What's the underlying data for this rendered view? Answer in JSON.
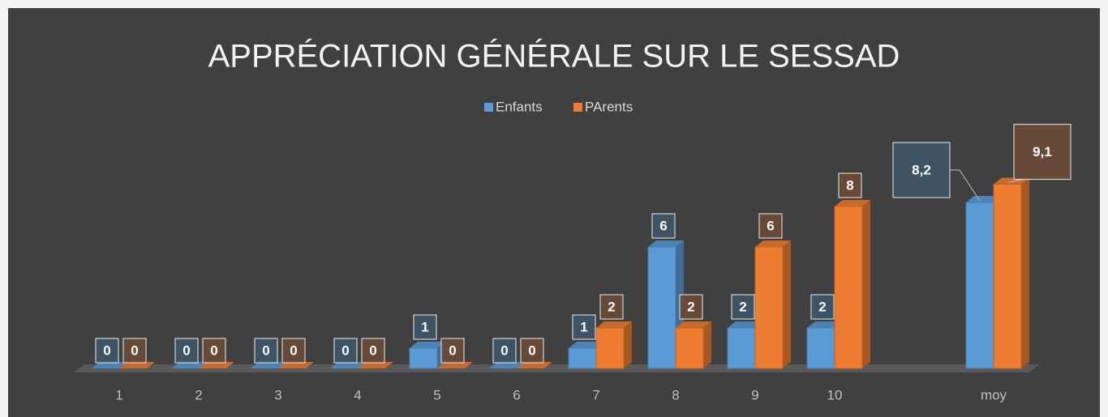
{
  "chart_data": {
    "type": "bar3d",
    "title": "APPRÉCIATION GÉNÉRALE SUR LE SESSAD",
    "categories": [
      "1",
      "2",
      "3",
      "4",
      "5",
      "6",
      "7",
      "8",
      "9",
      "10",
      null,
      "moy"
    ],
    "series": [
      {
        "name": "Enfants",
        "color": "#5b9bd5",
        "values": [
          0,
          0,
          0,
          0,
          1,
          0,
          1,
          6,
          2,
          2,
          null,
          8.2
        ],
        "value_labels": [
          "0",
          "0",
          "0",
          "0",
          "1",
          "0",
          "1",
          "6",
          "2",
          "2",
          null,
          "8,2"
        ]
      },
      {
        "name": "PArents",
        "color": "#ed7d31",
        "values": [
          0,
          0,
          0,
          0,
          0,
          0,
          2,
          2,
          6,
          8,
          null,
          9.1
        ],
        "value_labels": [
          "0",
          "0",
          "0",
          "0",
          "0",
          "0",
          "2",
          "2",
          "6",
          "8",
          null,
          "9,1"
        ]
      }
    ],
    "legend": "top",
    "grid": false
  }
}
